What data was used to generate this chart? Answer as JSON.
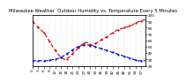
{
  "title": "Milwaukee Weather  Outdoor Humidity vs. Temperature Every 5 Minutes",
  "bg_color": "#ffffff",
  "grid_color": "#aaaaaa",
  "humidity_color": "#cc0000",
  "temp_color": "#0000cc",
  "humidity_values": [
    90,
    87,
    84,
    81,
    78,
    75,
    72,
    68,
    63,
    58,
    53,
    48,
    44,
    40,
    36,
    33,
    31,
    30,
    31,
    33,
    36,
    39,
    42,
    45,
    48,
    51,
    54,
    56,
    57,
    56,
    54,
    52,
    53,
    55,
    57,
    59,
    61,
    63,
    64,
    66,
    68,
    70,
    72,
    74,
    76,
    77,
    78,
    79,
    80,
    81,
    82,
    83,
    84,
    86,
    88,
    89,
    90,
    91,
    92,
    93
  ],
  "temp_values": [
    28,
    28,
    28,
    28,
    28,
    28,
    28,
    28,
    28,
    29,
    29,
    30,
    30,
    31,
    32,
    33,
    35,
    37,
    39,
    41,
    43,
    45,
    47,
    49,
    50,
    51,
    52,
    53,
    53,
    53,
    52,
    52,
    51,
    50,
    49,
    48,
    47,
    46,
    45,
    44,
    43,
    42,
    41,
    40,
    39,
    38,
    37,
    36,
    35,
    34,
    33,
    32,
    31,
    30,
    29,
    28,
    28,
    28,
    28,
    28
  ],
  "ylim": [
    20,
    100
  ],
  "yticks_right": [
    20,
    30,
    40,
    50,
    60,
    70,
    80,
    90,
    100
  ],
  "n_points": 60,
  "title_fontsize": 3.8,
  "tick_fontsize": 3.0,
  "linewidth": 0.8,
  "markersize": 1.2
}
